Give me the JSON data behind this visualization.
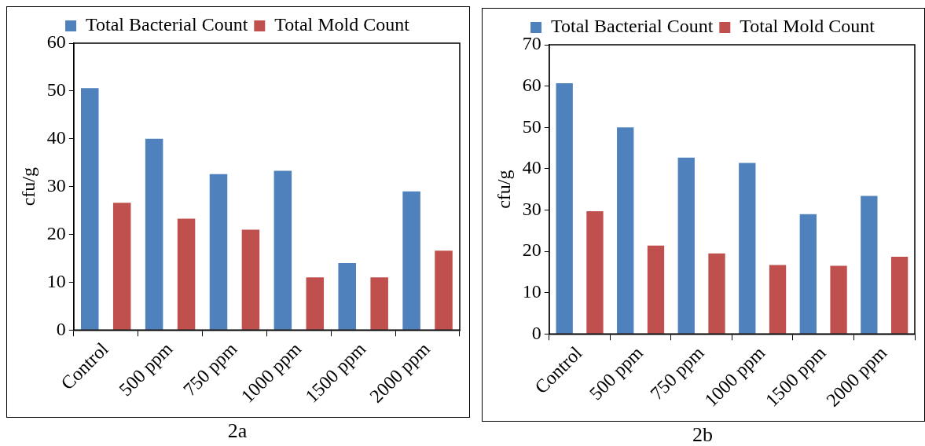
{
  "chart_data": [
    {
      "type": "bar",
      "categories": [
        "Control",
        "500 ppm",
        "750 ppm",
        "1000 ppm",
        "1500 ppm",
        "2000 ppm"
      ],
      "ylabel": "cfu/g",
      "ylim": [
        0,
        60
      ],
      "yticks": [
        0,
        10,
        20,
        30,
        40,
        50,
        60
      ],
      "legend": "top",
      "grid": false,
      "annotations": [
        "2a"
      ],
      "series": [
        {
          "name": "Total Bacterial Count",
          "color": "#4f81bd",
          "values": [
            50.6,
            40,
            32.6,
            33.3,
            14,
            29
          ]
        },
        {
          "name": "Total Mold Count",
          "color": "#c0504d",
          "values": [
            26.6,
            23.3,
            21,
            11,
            11,
            16.6
          ]
        }
      ]
    },
    {
      "type": "bar",
      "categories": [
        "Control",
        "500 ppm",
        "750 ppm",
        "1000 ppm",
        "1500 ppm",
        "2000 ppm"
      ],
      "ylabel": "cfu/g",
      "ylim": [
        0,
        70
      ],
      "yticks": [
        0,
        10,
        20,
        30,
        40,
        50,
        60,
        70
      ],
      "legend": "top",
      "grid": false,
      "annotations": [
        "2b"
      ],
      "series": [
        {
          "name": "Total Bacterial Count",
          "color": "#4f81bd",
          "values": [
            60.7,
            50,
            42.7,
            41.4,
            29,
            33.4
          ]
        },
        {
          "name": "Total Mold Count",
          "color": "#c0504d",
          "values": [
            29.7,
            21.4,
            19.5,
            16.7,
            16.5,
            18.7
          ]
        }
      ]
    }
  ]
}
